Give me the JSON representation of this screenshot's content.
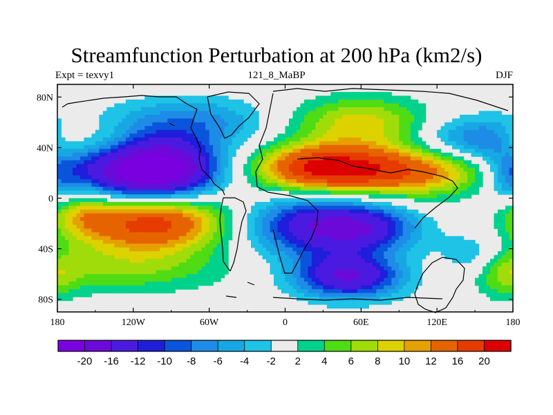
{
  "chart_data": {
    "type": "heatmap",
    "title": "Streamfunction Perturbation at 200 hPa (km2/s)",
    "left_subtitle": "Expt = texvy1",
    "center_subtitle": "121_8_MaBP",
    "right_subtitle": "DJF",
    "x_ticks": [
      {
        "value": -180,
        "label": "180"
      },
      {
        "value": -120,
        "label": "120W"
      },
      {
        "value": -60,
        "label": "60W"
      },
      {
        "value": 0,
        "label": "0"
      },
      {
        "value": 60,
        "label": "60E"
      },
      {
        "value": 120,
        "label": "120E"
      },
      {
        "value": 180,
        "label": "180"
      }
    ],
    "y_ticks": [
      {
        "value": 80,
        "label": "80N"
      },
      {
        "value": 40,
        "label": "40N"
      },
      {
        "value": 0,
        "label": "0"
      },
      {
        "value": -40,
        "label": "40S"
      },
      {
        "value": -80,
        "label": "80S"
      }
    ],
    "xlim": [
      -180,
      180
    ],
    "ylim": [
      -90,
      90
    ],
    "levels": [
      -20,
      -16,
      -12,
      -10,
      -8,
      -6,
      -4,
      -2,
      2,
      4,
      6,
      8,
      10,
      12,
      16,
      20
    ],
    "level_labels": [
      "-20",
      "-16",
      "-12",
      "-10",
      "-8",
      "-6",
      "-4",
      "-2",
      "2",
      "4",
      "6",
      "8",
      "10",
      "12",
      "16",
      "20"
    ],
    "colors": [
      "#7a00e0",
      "#6b0ad8",
      "#4b1ae0",
      "#1e1edb",
      "#0a55dc",
      "#1e8ce6",
      "#17a8e4",
      "#1ec3e6",
      "#ebebeb",
      "#00d28c",
      "#50dc14",
      "#a0dc0a",
      "#dcd200",
      "#e6a000",
      "#e66400",
      "#e63c00",
      "#dc0000"
    ],
    "field_centers": [
      {
        "lon": -118,
        "lat": 20,
        "amp": -22,
        "slon": 40,
        "slat": 18
      },
      {
        "lon": -85,
        "lat": 25,
        "amp": -8,
        "slon": 25,
        "slat": 15
      },
      {
        "lon": -105,
        "lat": -18,
        "amp": 19,
        "slon": 40,
        "slat": 16
      },
      {
        "lon": -160,
        "lat": -10,
        "amp": 7,
        "slon": 20,
        "slat": 15
      },
      {
        "lon": 30,
        "lat": -22,
        "amp": -16,
        "slon": 40,
        "slat": 17
      },
      {
        "lon": 70,
        "lat": -25,
        "amp": -6,
        "slon": 25,
        "slat": 12
      },
      {
        "lon": 50,
        "lat": -62,
        "amp": -16,
        "slon": 30,
        "slat": 12
      },
      {
        "lon": 75,
        "lat": 22,
        "amp": 18,
        "slon": 60,
        "slat": 14
      },
      {
        "lon": 25,
        "lat": 25,
        "amp": 10,
        "slon": 30,
        "slat": 12
      },
      {
        "lon": 60,
        "lat": 60,
        "amp": 9,
        "slon": 40,
        "slat": 14
      },
      {
        "lon": -75,
        "lat": 60,
        "amp": -7,
        "slon": 45,
        "slat": 14
      },
      {
        "lon": 150,
        "lat": 45,
        "amp": -9,
        "slon": 35,
        "slat": 14
      },
      {
        "lon": 178,
        "lat": 15,
        "amp": -6,
        "slon": 14,
        "slat": 14
      },
      {
        "lon": -130,
        "lat": -55,
        "amp": 6,
        "slon": 60,
        "slat": 14
      },
      {
        "lon": 175,
        "lat": -60,
        "amp": 5,
        "slon": 15,
        "slat": 14
      },
      {
        "lon": -150,
        "lat": 45,
        "amp": 5,
        "slon": 20,
        "slat": 12
      },
      {
        "lon": -175,
        "lat": 45,
        "amp": 4,
        "slon": 12,
        "slat": 10
      },
      {
        "lon": 150,
        "lat": -45,
        "amp": -5,
        "slon": 20,
        "slat": 12
      }
    ]
  }
}
